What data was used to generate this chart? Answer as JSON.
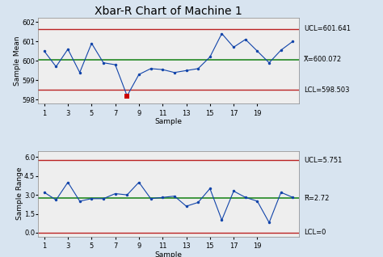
{
  "title": "Xbar-R Chart of Machine 1",
  "xbar_data": [
    600.5,
    599.7,
    600.6,
    599.4,
    600.9,
    599.9,
    599.8,
    598.2,
    599.3,
    599.6,
    599.55,
    599.4,
    599.5,
    599.6,
    600.2,
    601.4,
    600.7,
    601.1,
    600.5,
    599.9,
    600.55,
    601.0
  ],
  "xbar_ucl": 601.641,
  "xbar_mean": 600.072,
  "xbar_lcl": 598.503,
  "xbar_ylim": [
    597.8,
    602.2
  ],
  "xbar_yticks": [
    598,
    599,
    600,
    601,
    602
  ],
  "xbar_ylabel": "Sample Mean",
  "xbar_out_idx": 7,
  "range_data": [
    3.2,
    2.6,
    4.0,
    2.5,
    2.7,
    2.7,
    3.1,
    3.0,
    4.0,
    2.7,
    2.8,
    2.9,
    2.1,
    2.4,
    3.5,
    1.0,
    3.3,
    2.8,
    2.5,
    0.8,
    3.2,
    2.8
  ],
  "range_ucl": 5.751,
  "range_mean": 2.72,
  "range_lcl": 0,
  "range_ylim": [
    -0.3,
    6.5
  ],
  "range_yticks": [
    0.0,
    1.5,
    3.0,
    4.5,
    6.0
  ],
  "range_ylabel": "Sample Range",
  "xlabel": "Sample",
  "xticks": [
    1,
    3,
    5,
    7,
    9,
    11,
    13,
    15,
    17,
    19
  ],
  "control_line_color": "#bb2222",
  "center_line_color": "#228822",
  "data_line_color": "#1144aa",
  "data_marker": "o",
  "marker_size": 2.5,
  "out_marker_color": "#cc0000",
  "out_marker": "s",
  "bg_color": "#d8e4f0",
  "plot_bg_color": "#eeeeee",
  "label_fontsize": 6.5,
  "tick_fontsize": 6,
  "annot_fontsize": 6,
  "title_fontsize": 10
}
